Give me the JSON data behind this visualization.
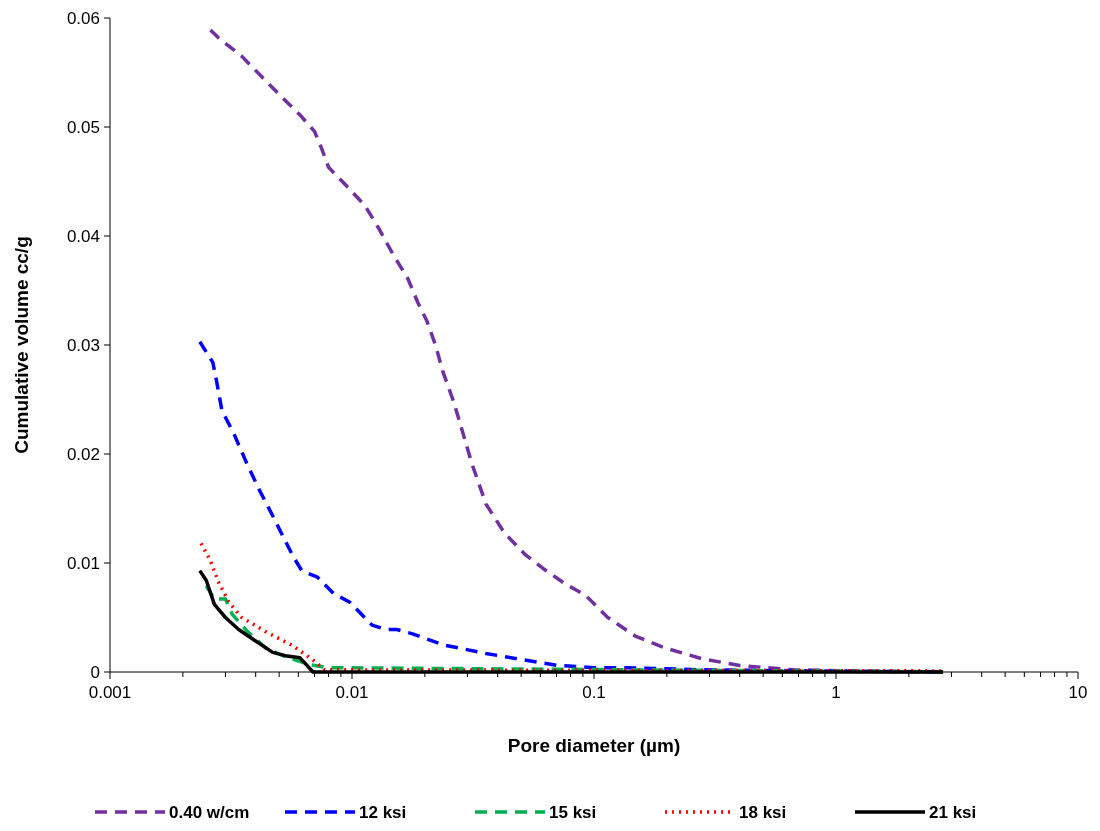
{
  "chart_data": {
    "type": "line",
    "xlabel": "Pore diameter (µm)",
    "ylabel": "Cumulative volume cc/g",
    "log": "x",
    "grid": false,
    "legend": "bottom",
    "marker": "none",
    "xlim": [
      0.001,
      10
    ],
    "ylim": [
      0,
      0.06
    ],
    "xticks": [
      0.001,
      {
        "value": 0.002,
        "label": null
      },
      {
        "value": 0.003,
        "label": null
      },
      {
        "value": 0.004,
        "label": null
      },
      {
        "value": 0.005,
        "label": null
      },
      {
        "value": 0.006,
        "label": null
      },
      {
        "value": 0.007,
        "label": null
      },
      {
        "value": 0.008,
        "label": null
      },
      {
        "value": 0.009,
        "label": null
      },
      0.01,
      {
        "value": 0.02,
        "label": null
      },
      {
        "value": 0.03,
        "label": null
      },
      {
        "value": 0.04,
        "label": null
      },
      {
        "value": 0.05,
        "label": null
      },
      {
        "value": 0.06,
        "label": null
      },
      {
        "value": 0.07,
        "label": null
      },
      {
        "value": 0.08,
        "label": null
      },
      {
        "value": 0.09,
        "label": null
      },
      0.1,
      {
        "value": 0.2,
        "label": null
      },
      {
        "value": 0.3,
        "label": null
      },
      {
        "value": 0.4,
        "label": null
      },
      {
        "value": 0.5,
        "label": null
      },
      {
        "value": 0.6,
        "label": null
      },
      {
        "value": 0.7,
        "label": null
      },
      {
        "value": 0.8,
        "label": null
      },
      {
        "value": 0.9,
        "label": null
      },
      1,
      {
        "value": 2,
        "label": null
      },
      {
        "value": 3,
        "label": null
      },
      {
        "value": 4,
        "label": null
      },
      {
        "value": 5,
        "label": null
      },
      {
        "value": 6,
        "label": null
      },
      {
        "value": 7,
        "label": null
      },
      {
        "value": 8,
        "label": null
      },
      {
        "value": 9,
        "label": null
      },
      10
    ],
    "yticks": [
      0,
      0.01,
      0.02,
      0.03,
      0.04,
      0.05,
      0.06
    ],
    "series": [
      {
        "name": "0.40 w/cm",
        "color": "#7030a0",
        "line_style": "dashed",
        "x": [
          0.0026,
          0.0028,
          0.0035,
          0.0042,
          0.0051,
          0.0061,
          0.007,
          0.0075,
          0.008,
          0.0094,
          0.0113,
          0.0129,
          0.0147,
          0.017,
          0.0187,
          0.0204,
          0.0222,
          0.0237,
          0.0264,
          0.0313,
          0.0358,
          0.0425,
          0.0518,
          0.0616,
          0.0759,
          0.0926,
          0.114,
          0.148,
          0.197,
          0.281,
          0.4,
          0.67,
          1.14,
          2.77
        ],
        "values": [
          0.0589,
          0.0582,
          0.0565,
          0.0547,
          0.0528,
          0.0511,
          0.0496,
          0.048,
          0.0463,
          0.0447,
          0.0428,
          0.0407,
          0.0384,
          0.0361,
          0.0339,
          0.0322,
          0.0299,
          0.0276,
          0.0247,
          0.0191,
          0.0154,
          0.0128,
          0.0108,
          0.0095,
          0.0081,
          0.007,
          0.005,
          0.0033,
          0.0022,
          0.0012,
          0.0006,
          0.0002,
          0.0001,
          0
        ]
      },
      {
        "name": "12 ksi",
        "color": "#0000ff",
        "line_style": "dashed",
        "x": [
          0.00235,
          0.00266,
          0.00274,
          0.0029,
          0.00326,
          0.00368,
          0.00412,
          0.00476,
          0.00571,
          0.0062,
          0.0072,
          0.0084,
          0.0098,
          0.0121,
          0.0138,
          0.0153,
          0.0178,
          0.0237,
          0.0358,
          0.0484,
          0.071,
          0.099,
          0.134,
          0.28,
          2.77
        ],
        "values": [
          0.0303,
          0.0284,
          0.027,
          0.024,
          0.0218,
          0.0191,
          0.0168,
          0.0141,
          0.0106,
          0.0093,
          0.0087,
          0.0072,
          0.0064,
          0.0043,
          0.0039,
          0.0039,
          0.0035,
          0.0025,
          0.0017,
          0.0012,
          0.0006,
          0.0004,
          0.0004,
          0.0002,
          0
        ]
      },
      {
        "name": "15 ksi",
        "color": "#00b050",
        "line_style": "dashed",
        "x": [
          0.0025,
          0.0027,
          0.003,
          0.0032,
          0.0037,
          0.0044,
          0.0053,
          0.0066,
          0.0079,
          2.77
        ],
        "values": [
          0.0079,
          0.0067,
          0.0067,
          0.0053,
          0.0037,
          0.0022,
          0.0014,
          0.0007,
          0.0004,
          0
        ]
      },
      {
        "name": "18 ksi",
        "color": "#ff0000",
        "line_style": "dotted",
        "x": [
          0.00238,
          0.0026,
          0.0028,
          0.0031,
          0.0035,
          0.0044,
          0.0057,
          0.007,
          0.0077,
          2.77
        ],
        "values": [
          0.0118,
          0.0102,
          0.0083,
          0.0064,
          0.005,
          0.0037,
          0.0024,
          0.001,
          0.0002,
          0.0001
        ]
      },
      {
        "name": "21 ksi",
        "color": "#000000",
        "line_style": "solid",
        "x": [
          0.00235,
          0.0025,
          0.0027,
          0.003,
          0.0034,
          0.0039,
          0.0047,
          0.0053,
          0.0061,
          0.0069,
          2.77
        ],
        "values": [
          0.0093,
          0.0084,
          0.0062,
          0.005,
          0.0039,
          0.003,
          0.0018,
          0.0015,
          0.0013,
          0,
          0
        ]
      }
    ]
  }
}
